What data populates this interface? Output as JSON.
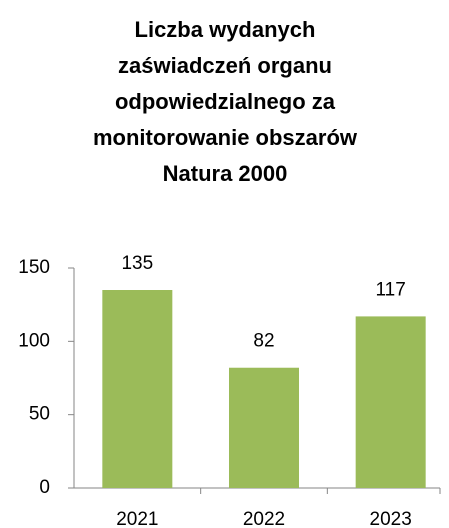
{
  "chart_data": {
    "type": "bar",
    "title": "Liczba wydanych zaświadczeń organu odpowiedzialnego za monitorowanie obszarów Natura 2000",
    "categories": [
      "2021",
      "2022",
      "2023"
    ],
    "values": [
      135,
      82,
      117
    ],
    "color": "#9bbb59",
    "ylim": [
      0,
      150
    ],
    "yticks": [
      0,
      50,
      100,
      150
    ],
    "grid": false
  }
}
